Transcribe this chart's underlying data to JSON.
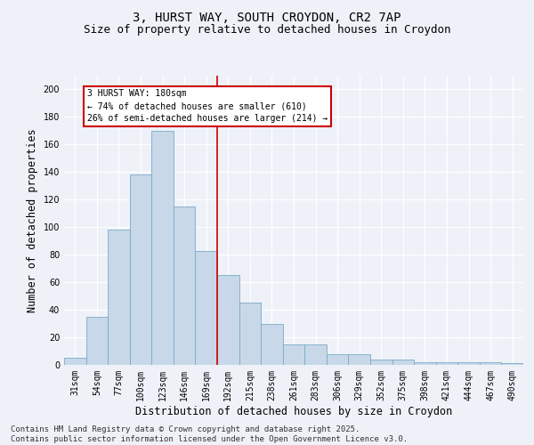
{
  "title_line1": "3, HURST WAY, SOUTH CROYDON, CR2 7AP",
  "title_line2": "Size of property relative to detached houses in Croydon",
  "xlabel": "Distribution of detached houses by size in Croydon",
  "ylabel": "Number of detached properties",
  "footer_line1": "Contains HM Land Registry data © Crown copyright and database right 2025.",
  "footer_line2": "Contains public sector information licensed under the Open Government Licence v3.0.",
  "bar_labels": [
    "31sqm",
    "54sqm",
    "77sqm",
    "100sqm",
    "123sqm",
    "146sqm",
    "169sqm",
    "192sqm",
    "215sqm",
    "238sqm",
    "261sqm",
    "283sqm",
    "306sqm",
    "329sqm",
    "352sqm",
    "375sqm",
    "398sqm",
    "421sqm",
    "444sqm",
    "467sqm",
    "490sqm"
  ],
  "bar_values": [
    5,
    35,
    98,
    138,
    170,
    115,
    83,
    65,
    45,
    30,
    15,
    15,
    8,
    8,
    4,
    4,
    2,
    2,
    2,
    2,
    1
  ],
  "bar_color": "#c8d8e8",
  "bar_edge_color": "#7aaac8",
  "vline_index": 6.5,
  "vline_color": "#cc0000",
  "annotation_text_line1": "3 HURST WAY: 180sqm",
  "annotation_text_line2": "← 74% of detached houses are smaller (610)",
  "annotation_text_line3": "26% of semi-detached houses are larger (214) →",
  "annotation_box_color": "#cc0000",
  "ylim": [
    0,
    210
  ],
  "yticks": [
    0,
    20,
    40,
    60,
    80,
    100,
    120,
    140,
    160,
    180,
    200
  ],
  "background_color": "#eef2f8",
  "grid_color": "#ffffff",
  "title_fontsize": 10,
  "subtitle_fontsize": 9,
  "axis_label_fontsize": 8.5,
  "tick_fontsize": 7,
  "annotation_fontsize": 7,
  "footer_fontsize": 6.5
}
